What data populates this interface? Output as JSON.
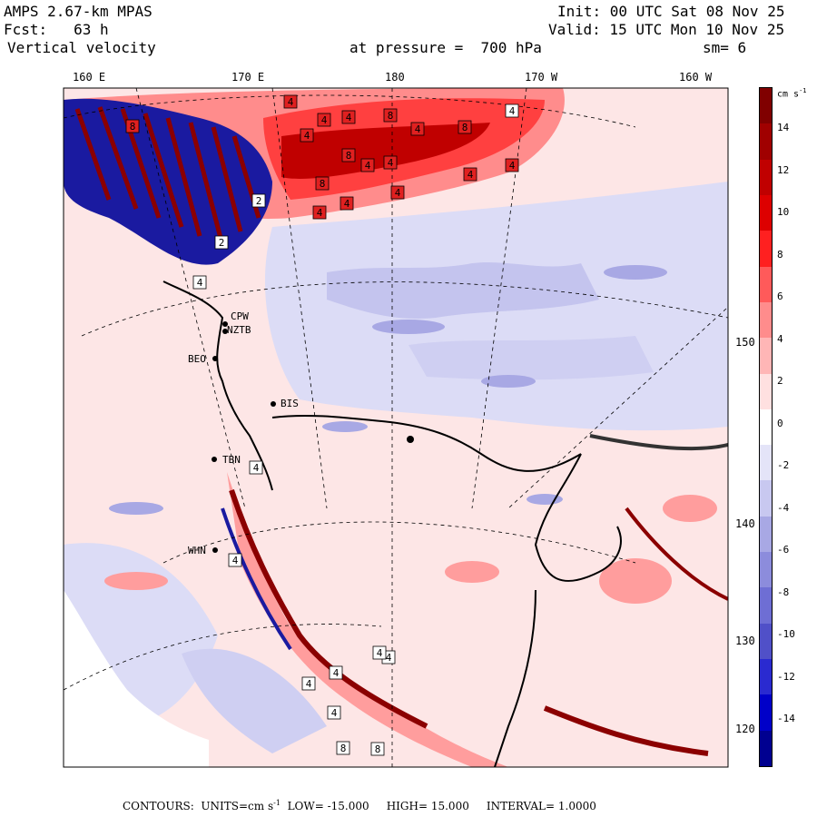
{
  "header": {
    "model": "AMPS 2.67-km MPAS",
    "init": "Init: 00 UTC Sat 08 Nov 25",
    "fcst": "Fcst:   63 h",
    "valid": "Valid: 15 UTC Mon 10 Nov 25",
    "field": "Vertical velocity",
    "pressure": "at pressure =  700 hPa",
    "smoothing": "sm= 6"
  },
  "longitude_labels": [
    "160 E",
    "170 E",
    "180",
    "170 W",
    "160 W"
  ],
  "latitude_labels": [
    "150 W",
    "140 W",
    "130 W",
    "120 W"
  ],
  "stations": [
    "CPW",
    "NZTB",
    "BEO",
    "BIS",
    "TBN",
    "WHN"
  ],
  "colorbar": {
    "unit": "cm s",
    "unit_exp": "-1",
    "ticks": [
      "14",
      "12",
      "10",
      "8",
      "6",
      "4",
      "2",
      "0",
      "-2",
      "-4",
      "-6",
      "-8",
      "-10",
      "-12",
      "-14"
    ],
    "colors": [
      "#800000",
      "#a00000",
      "#c00000",
      "#dd0000",
      "#ff2020",
      "#ff5a5a",
      "#ff8c8c",
      "#ffb6b6",
      "#ffe0e0",
      "#ffffff",
      "#e4e4f8",
      "#c8c8f0",
      "#a8a8e4",
      "#8c8cdc",
      "#6e6ed4",
      "#5050c8",
      "#2a2ad0",
      "#0000c8",
      "#000090"
    ]
  },
  "contour_labels": [
    "4",
    "8",
    "4",
    "8",
    "4",
    "4",
    "4",
    "8",
    "4",
    "4",
    "8",
    "4",
    "4",
    "8",
    "4",
    "4",
    "4",
    "2",
    "2",
    "4",
    "4",
    "4",
    "4",
    "4",
    "4",
    "4",
    "8",
    "8",
    "4",
    "4"
  ],
  "footer": {
    "contours_label": "CONTOURS:",
    "units_label": "UNITS=cm s",
    "units_exp": "-1",
    "low": "LOW= -15.000",
    "high": "HIGH= 15.000",
    "interval": "INTERVAL= 1.0000"
  }
}
